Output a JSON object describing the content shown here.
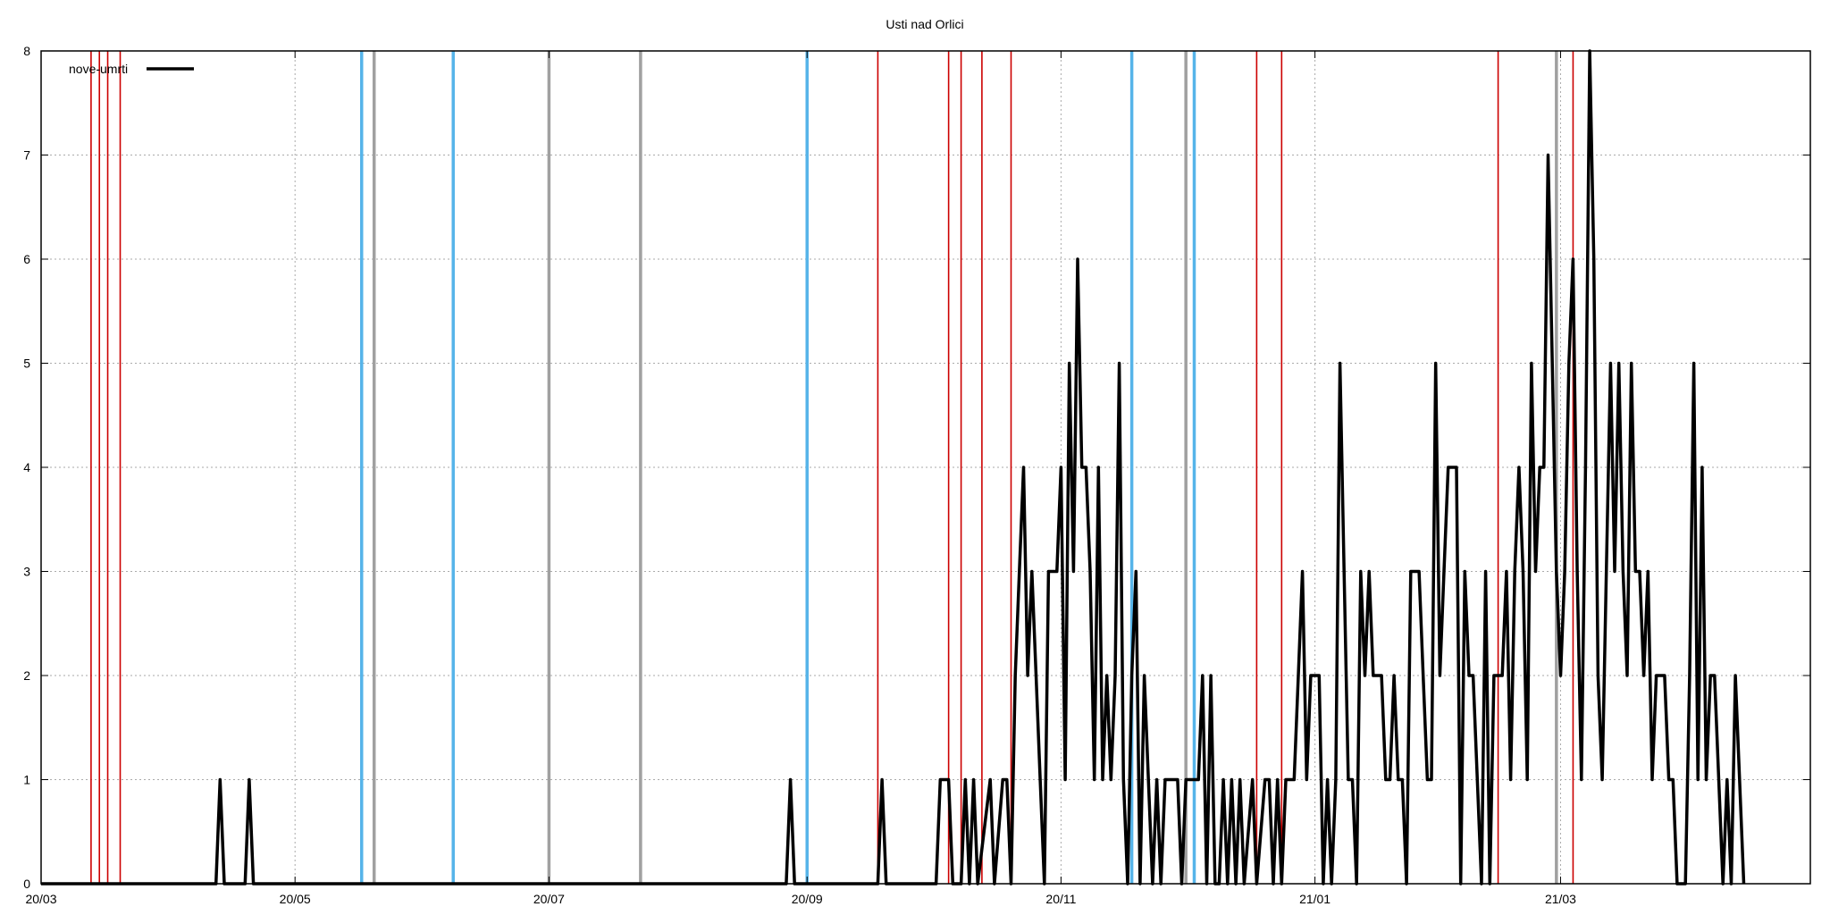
{
  "chart_data": {
    "type": "line",
    "title": "Usti nad Orlici",
    "xlabel": "",
    "ylabel": "",
    "x_start_date": "2020-03-01",
    "x_end_date": "2021-04-30",
    "ylim": [
      0,
      8
    ],
    "y_ticks": [
      "0",
      "1",
      "2",
      "3",
      "4",
      "5",
      "6",
      "7",
      "8"
    ],
    "x_ticks": [
      {
        "label": "20/03",
        "date": "2020-03-01"
      },
      {
        "label": "20/05",
        "date": "2020-05-01"
      },
      {
        "label": "20/07",
        "date": "2020-07-01"
      },
      {
        "label": "20/09",
        "date": "2020-09-01"
      },
      {
        "label": "20/11",
        "date": "2020-11-01"
      },
      {
        "label": "21/01",
        "date": "2021-01-01"
      },
      {
        "label": "21/03",
        "date": "2021-03-01"
      }
    ],
    "grid": true,
    "legend_position": "top-left",
    "series": [
      {
        "name": "nove-umrti",
        "color": "#000000",
        "points": [
          [
            "2020-03-01",
            0
          ],
          [
            "2020-04-12",
            0
          ],
          [
            "2020-04-13",
            1
          ],
          [
            "2020-04-14",
            0
          ],
          [
            "2020-04-19",
            0
          ],
          [
            "2020-04-20",
            1
          ],
          [
            "2020-04-21",
            0
          ],
          [
            "2020-08-27",
            0
          ],
          [
            "2020-08-28",
            1
          ],
          [
            "2020-08-29",
            0
          ],
          [
            "2020-09-18",
            0
          ],
          [
            "2020-09-19",
            1
          ],
          [
            "2020-09-20",
            0
          ],
          [
            "2020-10-02",
            0
          ],
          [
            "2020-10-03",
            1
          ],
          [
            "2020-10-05",
            1
          ],
          [
            "2020-10-06",
            0
          ],
          [
            "2020-10-08",
            0
          ],
          [
            "2020-10-09",
            1
          ],
          [
            "2020-10-10",
            0
          ],
          [
            "2020-10-11",
            1
          ],
          [
            "2020-10-12",
            0
          ],
          [
            "2020-10-15",
            1
          ],
          [
            "2020-10-16",
            0
          ],
          [
            "2020-10-18",
            1
          ],
          [
            "2020-10-19",
            1
          ],
          [
            "2020-10-20",
            0
          ],
          [
            "2020-10-21",
            2
          ],
          [
            "2020-10-22",
            3
          ],
          [
            "2020-10-23",
            4
          ],
          [
            "2020-10-24",
            2
          ],
          [
            "2020-10-25",
            3
          ],
          [
            "2020-10-26",
            2
          ],
          [
            "2020-10-27",
            1
          ],
          [
            "2020-10-28",
            0
          ],
          [
            "2020-10-29",
            3
          ],
          [
            "2020-10-31",
            3
          ],
          [
            "2020-11-01",
            4
          ],
          [
            "2020-11-02",
            1
          ],
          [
            "2020-11-03",
            5
          ],
          [
            "2020-11-04",
            3
          ],
          [
            "2020-11-05",
            6
          ],
          [
            "2020-11-06",
            4
          ],
          [
            "2020-11-07",
            4
          ],
          [
            "2020-11-08",
            3
          ],
          [
            "2020-11-09",
            1
          ],
          [
            "2020-11-10",
            4
          ],
          [
            "2020-11-11",
            1
          ],
          [
            "2020-11-12",
            2
          ],
          [
            "2020-11-13",
            1
          ],
          [
            "2020-11-14",
            2
          ],
          [
            "2020-11-15",
            5
          ],
          [
            "2020-11-16",
            1
          ],
          [
            "2020-11-17",
            0
          ],
          [
            "2020-11-18",
            2
          ],
          [
            "2020-11-19",
            3
          ],
          [
            "2020-11-20",
            0
          ],
          [
            "2020-11-21",
            2
          ],
          [
            "2020-11-22",
            1
          ],
          [
            "2020-11-23",
            0
          ],
          [
            "2020-11-24",
            1
          ],
          [
            "2020-11-25",
            0
          ],
          [
            "2020-11-26",
            1
          ],
          [
            "2020-11-29",
            1
          ],
          [
            "2020-11-30",
            0
          ],
          [
            "2020-12-01",
            1
          ],
          [
            "2020-12-04",
            1
          ],
          [
            "2020-12-05",
            2
          ],
          [
            "2020-12-06",
            0
          ],
          [
            "2020-12-07",
            2
          ],
          [
            "2020-12-08",
            0
          ],
          [
            "2020-12-09",
            0
          ],
          [
            "2020-12-10",
            1
          ],
          [
            "2020-12-11",
            0
          ],
          [
            "2020-12-12",
            1
          ],
          [
            "2020-12-13",
            0
          ],
          [
            "2020-12-14",
            1
          ],
          [
            "2020-12-15",
            0
          ],
          [
            "2020-12-17",
            1
          ],
          [
            "2020-12-18",
            0
          ],
          [
            "2020-12-20",
            1
          ],
          [
            "2020-12-21",
            1
          ],
          [
            "2020-12-22",
            0
          ],
          [
            "2020-12-23",
            1
          ],
          [
            "2020-12-24",
            0
          ],
          [
            "2020-12-25",
            1
          ],
          [
            "2020-12-27",
            1
          ],
          [
            "2020-12-28",
            2
          ],
          [
            "2020-12-29",
            3
          ],
          [
            "2020-12-30",
            1
          ],
          [
            "2020-12-31",
            2
          ],
          [
            "2021-01-02",
            2
          ],
          [
            "2021-01-03",
            0
          ],
          [
            "2021-01-04",
            1
          ],
          [
            "2021-01-05",
            0
          ],
          [
            "2021-01-06",
            1
          ],
          [
            "2021-01-07",
            5
          ],
          [
            "2021-01-08",
            3
          ],
          [
            "2021-01-09",
            1
          ],
          [
            "2021-01-10",
            1
          ],
          [
            "2021-01-11",
            0
          ],
          [
            "2021-01-12",
            3
          ],
          [
            "2021-01-13",
            2
          ],
          [
            "2021-01-14",
            3
          ],
          [
            "2021-01-15",
            2
          ],
          [
            "2021-01-17",
            2
          ],
          [
            "2021-01-18",
            1
          ],
          [
            "2021-01-19",
            1
          ],
          [
            "2021-01-20",
            2
          ],
          [
            "2021-01-21",
            1
          ],
          [
            "2021-01-22",
            1
          ],
          [
            "2021-01-23",
            0
          ],
          [
            "2021-01-24",
            3
          ],
          [
            "2021-01-26",
            3
          ],
          [
            "2021-01-27",
            2
          ],
          [
            "2021-01-28",
            1
          ],
          [
            "2021-01-29",
            1
          ],
          [
            "2021-01-30",
            5
          ],
          [
            "2021-01-31",
            2
          ],
          [
            "2021-02-01",
            3
          ],
          [
            "2021-02-02",
            4
          ],
          [
            "2021-02-04",
            4
          ],
          [
            "2021-02-05",
            0
          ],
          [
            "2021-02-06",
            3
          ],
          [
            "2021-02-07",
            2
          ],
          [
            "2021-02-08",
            2
          ],
          [
            "2021-02-09",
            1
          ],
          [
            "2021-02-10",
            0
          ],
          [
            "2021-02-11",
            3
          ],
          [
            "2021-02-12",
            0
          ],
          [
            "2021-02-13",
            2
          ],
          [
            "2021-02-15",
            2
          ],
          [
            "2021-02-16",
            3
          ],
          [
            "2021-02-17",
            1
          ],
          [
            "2021-02-18",
            3
          ],
          [
            "2021-02-19",
            4
          ],
          [
            "2021-02-20",
            3
          ],
          [
            "2021-02-21",
            1
          ],
          [
            "2021-02-22",
            5
          ],
          [
            "2021-02-23",
            3
          ],
          [
            "2021-02-24",
            4
          ],
          [
            "2021-02-25",
            4
          ],
          [
            "2021-02-26",
            7
          ],
          [
            "2021-02-27",
            5
          ],
          [
            "2021-02-28",
            3
          ],
          [
            "2021-03-01",
            2
          ],
          [
            "2021-03-02",
            3
          ],
          [
            "2021-03-03",
            5
          ],
          [
            "2021-03-04",
            6
          ],
          [
            "2021-03-05",
            3
          ],
          [
            "2021-03-06",
            1
          ],
          [
            "2021-03-07",
            4
          ],
          [
            "2021-03-08",
            8
          ],
          [
            "2021-03-09",
            6
          ],
          [
            "2021-03-10",
            2
          ],
          [
            "2021-03-11",
            1
          ],
          [
            "2021-03-12",
            3
          ],
          [
            "2021-03-13",
            5
          ],
          [
            "2021-03-14",
            3
          ],
          [
            "2021-03-15",
            5
          ],
          [
            "2021-03-16",
            3
          ],
          [
            "2021-03-17",
            2
          ],
          [
            "2021-03-18",
            5
          ],
          [
            "2021-03-19",
            3
          ],
          [
            "2021-03-20",
            3
          ],
          [
            "2021-03-21",
            2
          ],
          [
            "2021-03-22",
            3
          ],
          [
            "2021-03-23",
            1
          ],
          [
            "2021-03-24",
            2
          ],
          [
            "2021-03-26",
            2
          ],
          [
            "2021-03-27",
            1
          ],
          [
            "2021-03-28",
            1
          ],
          [
            "2021-03-29",
            0
          ],
          [
            "2021-03-31",
            0
          ],
          [
            "2021-04-01",
            2
          ],
          [
            "2021-04-02",
            5
          ],
          [
            "2021-04-03",
            1
          ],
          [
            "2021-04-04",
            4
          ],
          [
            "2021-04-05",
            1
          ],
          [
            "2021-04-06",
            2
          ],
          [
            "2021-04-07",
            2
          ],
          [
            "2021-04-08",
            1
          ],
          [
            "2021-04-09",
            0
          ],
          [
            "2021-04-10",
            1
          ],
          [
            "2021-04-11",
            0
          ],
          [
            "2021-04-12",
            2
          ],
          [
            "2021-04-13",
            1
          ],
          [
            "2021-04-14",
            0
          ]
        ]
      }
    ],
    "vertical_markers": [
      {
        "date": "2020-03-13",
        "color": "#cc0000",
        "width": 1.6
      },
      {
        "date": "2020-03-15",
        "color": "#cc0000",
        "width": 1.6
      },
      {
        "date": "2020-03-17",
        "color": "#cc0000",
        "width": 1.6
      },
      {
        "date": "2020-03-20",
        "color": "#cc0000",
        "width": 1.6
      },
      {
        "date": "2020-05-17",
        "color": "#56b4e9",
        "width": 3.5
      },
      {
        "date": "2020-05-20",
        "color": "#a0a0a0",
        "width": 3.5
      },
      {
        "date": "2020-06-08",
        "color": "#56b4e9",
        "width": 3.5
      },
      {
        "date": "2020-07-01",
        "color": "#a0a0a0",
        "width": 3.5
      },
      {
        "date": "2020-07-23",
        "color": "#a0a0a0",
        "width": 3.5
      },
      {
        "date": "2020-09-01",
        "color": "#56b4e9",
        "width": 3.5
      },
      {
        "date": "2020-09-18",
        "color": "#cc0000",
        "width": 1.6
      },
      {
        "date": "2020-10-05",
        "color": "#cc0000",
        "width": 1.6
      },
      {
        "date": "2020-10-08",
        "color": "#cc0000",
        "width": 1.6
      },
      {
        "date": "2020-10-13",
        "color": "#cc0000",
        "width": 1.6
      },
      {
        "date": "2020-10-20",
        "color": "#cc0000",
        "width": 1.6
      },
      {
        "date": "2020-11-18",
        "color": "#56b4e9",
        "width": 3.5
      },
      {
        "date": "2020-12-01",
        "color": "#a0a0a0",
        "width": 3.5
      },
      {
        "date": "2020-12-03",
        "color": "#56b4e9",
        "width": 3.5
      },
      {
        "date": "2020-12-18",
        "color": "#cc0000",
        "width": 1.6
      },
      {
        "date": "2020-12-24",
        "color": "#cc0000",
        "width": 1.6
      },
      {
        "date": "2021-02-14",
        "color": "#cc0000",
        "width": 1.6
      },
      {
        "date": "2021-02-28",
        "color": "#a0a0a0",
        "width": 3.5
      },
      {
        "date": "2021-03-04",
        "color": "#cc0000",
        "width": 1.6
      }
    ]
  }
}
